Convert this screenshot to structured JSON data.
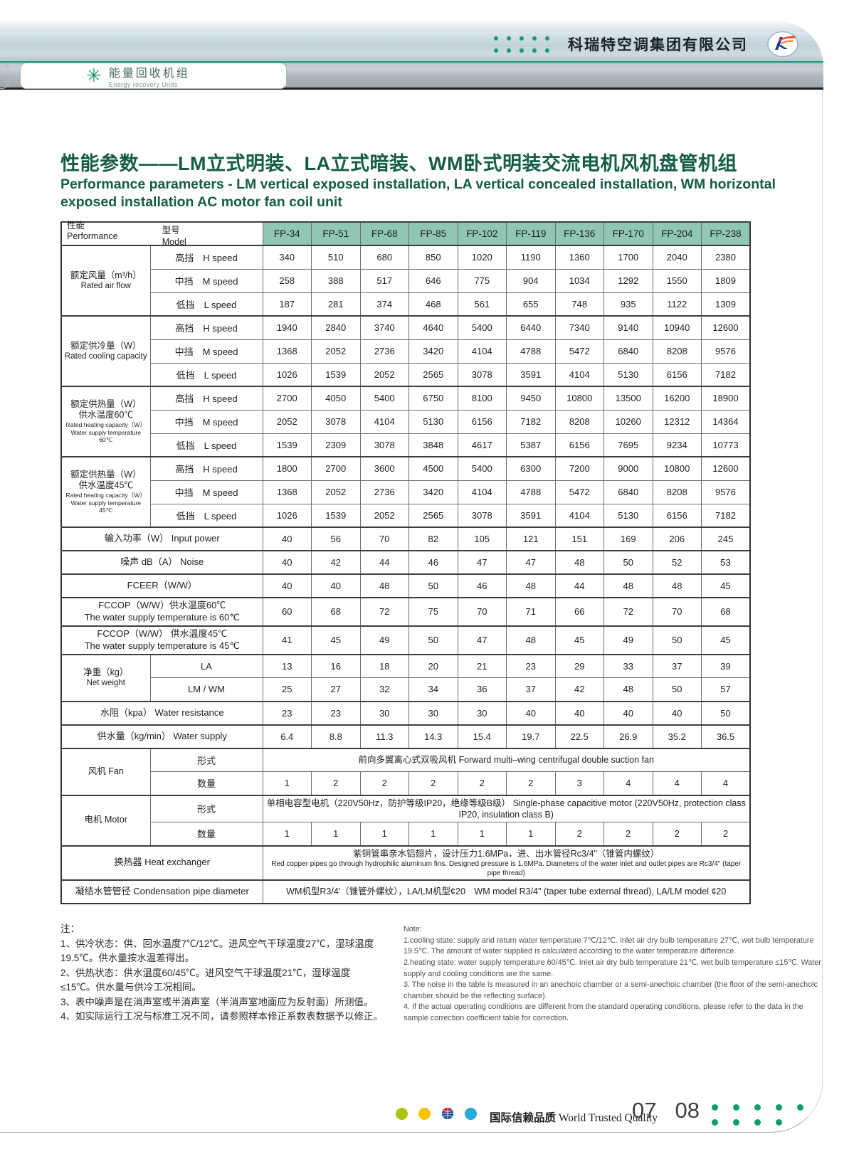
{
  "header": {
    "company": "科瑞特空调集团有限公司",
    "tab_title": "能量回收机组",
    "tab_subtitle": "Energy recovery Units"
  },
  "title": {
    "zh": "性能参数——LM立式明装、LA立式暗装、WM卧式明装交流电机风机盘管机组",
    "en": "Performance parameters - LM vertical exposed installation, LA vertical concealed installation, WM horizontal exposed installation AC motor fan coil unit"
  },
  "table": {
    "corner": {
      "model_zh": "型号",
      "model_en": "Model",
      "perf_zh": "性能",
      "perf_en": "Performance"
    },
    "models": [
      "FP-34",
      "FP-51",
      "FP-68",
      "FP-85",
      "FP-102",
      "FP-119",
      "FP-136",
      "FP-170",
      "FP-204",
      "FP-238"
    ],
    "rows": [
      {
        "group": {
          "zh": [
            "额定风量（m³/h）"
          ],
          "en": [
            "Rated air flow"
          ],
          "span": 3
        },
        "sub": "高挡　H speed",
        "values": [
          "340",
          "510",
          "680",
          "850",
          "1020",
          "1190",
          "1360",
          "1700",
          "2040",
          "2380"
        ],
        "shaded": false
      },
      {
        "cont": true,
        "sub": "中挡　M speed",
        "values": [
          "258",
          "388",
          "517",
          "646",
          "775",
          "904",
          "1034",
          "1292",
          "1550",
          "1809"
        ],
        "shaded": true
      },
      {
        "cont": true,
        "sub": "低挡　L speed",
        "values": [
          "187",
          "281",
          "374",
          "468",
          "561",
          "655",
          "748",
          "935",
          "1122",
          "1309"
        ],
        "shaded": false
      },
      {
        "group": {
          "zh": [
            "额定供冷量（W）"
          ],
          "en": [
            "Rated cooling capacity"
          ],
          "span": 3
        },
        "sub": "高挡　H speed",
        "values": [
          "1940",
          "2840",
          "3740",
          "4640",
          "5400",
          "6440",
          "7340",
          "9140",
          "10940",
          "12600"
        ],
        "shaded": true
      },
      {
        "cont": true,
        "sub": "中挡　M speed",
        "values": [
          "1368",
          "2052",
          "2736",
          "3420",
          "4104",
          "4788",
          "5472",
          "6840",
          "8208",
          "9576"
        ],
        "shaded": false
      },
      {
        "cont": true,
        "sub": "低挡　L speed",
        "values": [
          "1026",
          "1539",
          "2052",
          "2565",
          "3078",
          "3591",
          "4104",
          "5130",
          "6156",
          "7182"
        ],
        "shaded": true
      },
      {
        "group": {
          "zh": [
            "额定供热量（W）",
            "供水温度60℃"
          ],
          "en": [
            "Rated heating capacity（W）",
            "Water supply temperature 60℃"
          ],
          "en_small": true,
          "span": 3
        },
        "sub": "高挡　H speed",
        "values": [
          "2700",
          "4050",
          "5400",
          "6750",
          "8100",
          "9450",
          "10800",
          "13500",
          "16200",
          "18900"
        ],
        "shaded": false
      },
      {
        "cont": true,
        "sub": "中挡　M speed",
        "values": [
          "2052",
          "3078",
          "4104",
          "5130",
          "6156",
          "7182",
          "8208",
          "10260",
          "12312",
          "14364"
        ],
        "shaded": true
      },
      {
        "cont": true,
        "sub": "低挡　L speed",
        "values": [
          "1539",
          "2309",
          "3078",
          "3848",
          "4617",
          "5387",
          "6156",
          "7695",
          "9234",
          "10773"
        ],
        "shaded": false
      },
      {
        "group": {
          "zh": [
            "额定供热量（W）",
            "供水温度45℃"
          ],
          "en": [
            "Rated heating capacity（W）",
            "Water supply temperature 45℃"
          ],
          "en_small": true,
          "span": 3
        },
        "sub": "高挡　H speed",
        "values": [
          "1800",
          "2700",
          "3600",
          "4500",
          "5400",
          "6300",
          "7200",
          "9000",
          "10800",
          "12600"
        ],
        "shaded": true
      },
      {
        "cont": true,
        "sub": "中挡　M speed",
        "values": [
          "1368",
          "2052",
          "2736",
          "3420",
          "4104",
          "4788",
          "5472",
          "6840",
          "8208",
          "9576"
        ],
        "shaded": false
      },
      {
        "cont": true,
        "sub": "低挡　L speed",
        "values": [
          "1026",
          "1539",
          "2052",
          "2565",
          "3078",
          "3591",
          "4104",
          "5130",
          "6156",
          "7182"
        ],
        "shaded": true
      },
      {
        "label": [
          "输入功率（W）  Input power"
        ],
        "values": [
          "40",
          "56",
          "70",
          "82",
          "105",
          "121",
          "151",
          "169",
          "206",
          "245"
        ],
        "shaded": false
      },
      {
        "label": [
          "噪声 dB（A）  Noise"
        ],
        "values": [
          "40",
          "42",
          "44",
          "46",
          "47",
          "47",
          "48",
          "50",
          "52",
          "53"
        ],
        "shaded": true
      },
      {
        "label": [
          "FCEER（W/W）"
        ],
        "values": [
          "40",
          "40",
          "48",
          "50",
          "46",
          "48",
          "44",
          "48",
          "48",
          "45"
        ],
        "shaded": false
      },
      {
        "label": [
          "FCCOP（W/W）供水温度60℃",
          "The water supply temperature is 60℃"
        ],
        "values": [
          "60",
          "68",
          "72",
          "75",
          "70",
          "71",
          "66",
          "72",
          "70",
          "68"
        ],
        "shaded": true
      },
      {
        "label": [
          "FCCOP（W/W） 供水温度45℃",
          "The water supply temperature is 45℃"
        ],
        "values": [
          "41",
          "45",
          "49",
          "50",
          "47",
          "48",
          "45",
          "49",
          "50",
          "45"
        ],
        "shaded": false
      },
      {
        "group": {
          "zh": [
            "净重（kg）"
          ],
          "en": [
            "Net weight"
          ],
          "span": 2
        },
        "sub": "LA",
        "values": [
          "13",
          "16",
          "18",
          "20",
          "21",
          "23",
          "29",
          "33",
          "37",
          "39"
        ],
        "shaded": true
      },
      {
        "cont": true,
        "sub": "LM / WM",
        "values": [
          "25",
          "27",
          "32",
          "34",
          "36",
          "37",
          "42",
          "48",
          "50",
          "57"
        ],
        "shaded": false
      },
      {
        "label": [
          "水阻（kpa）  Water resistance"
        ],
        "values": [
          "23",
          "23",
          "30",
          "30",
          "30",
          "40",
          "40",
          "40",
          "40",
          "50"
        ],
        "shaded": true
      },
      {
        "label": [
          "供水量（kg/min）  Water supply"
        ],
        "values": [
          "6.4",
          "8.8",
          "11.3",
          "14.3",
          "15.4",
          "19.7",
          "22.5",
          "26.9",
          "35.2",
          "36.5"
        ],
        "shaded": true
      },
      {
        "group": {
          "zh": [
            "风机 Fan"
          ],
          "en": [],
          "span": 2
        },
        "sub": "形式",
        "merged": [
          "前向多翼离心式双吸风机  Forward multi–wing centrifugal double suction fan"
        ],
        "shaded": false
      },
      {
        "cont": true,
        "sub": "数量",
        "values": [
          "1",
          "2",
          "2",
          "2",
          "2",
          "2",
          "3",
          "4",
          "4",
          "4"
        ],
        "shaded": true
      },
      {
        "group": {
          "zh": [
            "电机  Motor"
          ],
          "en": [],
          "span": 2
        },
        "sub": "形式",
        "merged": [
          "单相电容型电机（220V50Hz，防护等级IP20，绝缘等级B级）  Single-phase capacitive motor (220V50Hz, protection class IP20, insulation class B)"
        ],
        "shaded": false
      },
      {
        "cont": true,
        "sub": "数量",
        "values": [
          "1",
          "1",
          "1",
          "1",
          "1",
          "1",
          "2",
          "2",
          "2",
          "2"
        ],
        "shaded": true
      },
      {
        "label": [
          "换热器  Heat exchanger"
        ],
        "merged": [
          "紫铜管串亲水铝翅片，设计压力1.6MPa，进、出水管径Rc3/4\"（锥管内螺纹）",
          "Red copper pipes go through hydrophilic aluminum fins. Designed pressure is 1.6MPa. Diameters of the water inlet and outlet pipes are Rc3/4\" (taper pipe thread)"
        ],
        "shaded": false
      },
      {
        "label": [
          "凝结水管管径  Condensation pipe diameter"
        ],
        "merged": [
          "WM机型R3/4'（锥管外螺纹），LA/LM机型¢20　WM model R3/4\"  (taper tube external thread), LA/LM model ¢20"
        ],
        "shaded": true
      }
    ]
  },
  "notes": {
    "zh": [
      "注：",
      "1、供冷状态：供、回水温度7℃/12℃。进风空气干球温度27℃，湿球温度19.5℃。供水量按水温差得出。",
      "2、供热状态：供水温度60/45℃。进风空气干球温度21℃，湿球温度≤15℃。供水量与供冷工况相同。",
      "3、表中噪声是在消声室或半消声室（半消声室地面应为反射面）所测值。",
      "4、如实际运行工况与标准工况不同，请参照样本修正系数表数据予以修正。"
    ],
    "en": [
      "Note:",
      "1.cooling state: supply and return water temperature 7℃/12℃. Inlet air dry bulb temperature 27℃, wet bulb temperature 19.5℃. The amount of water supplied is calculated according to the water temperature difference.",
      "2.heating state: water supply temperature 60/45℃. Inlet air dry bulb temperature 21℃, wet bulb temperature ≤15℃. Water supply and cooling conditions are the same.",
      "3. The noise in the table is measured in an anechoic chamber or a semi-anechoic chamber (the floor of the semi-anechoic chamber should be the reflecting surface).",
      "4. If the actual operating conditions are different from the standard operating conditions, please refer to the data in the sample correction coefficient table for correction."
    ]
  },
  "footer": {
    "quality_zh": "国际信赖品质",
    "quality_en": "World Trusted Quality",
    "page_left": "07",
    "page_right": "08"
  },
  "colors": {
    "cell_teal": "#8fc7b2",
    "title_green": "#145c47",
    "rule_teal": "#0d9b79",
    "dot_green": "#0c9d72"
  }
}
